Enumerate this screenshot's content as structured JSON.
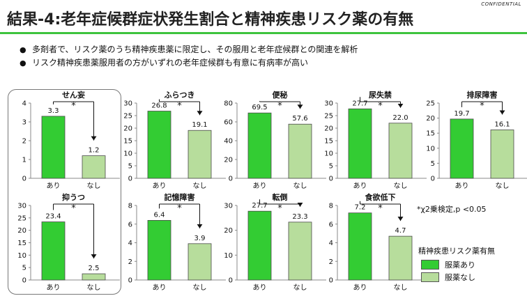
{
  "confidential_label": "CONFIDENTIAL",
  "title": "結果-4:老年症候群症状発生割合と精神疾患リスク薬の有無",
  "bullets": [
    "多剤者で、リスク薬のうち精神疾患薬に限定し、その服用と老年症候群との関連を解析",
    "リスク精神疾患薬服用者の方がいずれの老年症候群も有意に有病率が高い"
  ],
  "bullet_symbol": "●",
  "footnote": "*χ2乗検定,p <0.05",
  "legend": {
    "title": "精神疾患リスク薬有無",
    "items": [
      {
        "label": "服薬あり",
        "color": "#33cc33"
      },
      {
        "label": "服薬なし",
        "color": "#b7dd9c"
      }
    ]
  },
  "colors": {
    "ari": "#33cc33",
    "nashi": "#b7dd9c",
    "bar_border": "#4a4a4a",
    "accent_line": "#3ec43e"
  },
  "chart_data": [
    {
      "type": "bar",
      "title": "せん妄",
      "categories": [
        "あり",
        "なし"
      ],
      "values": [
        3.3,
        1.2
      ],
      "value_labels": [
        "3.3",
        "1.2"
      ],
      "ylim": [
        0,
        4
      ],
      "yticks": [
        "0",
        "1",
        "2",
        "3",
        "4"
      ],
      "significance": "*"
    },
    {
      "type": "bar",
      "title": "ふらつき",
      "categories": [
        "あり",
        "なし"
      ],
      "values": [
        26.8,
        19.1
      ],
      "value_labels": [
        "26.8",
        "19.1"
      ],
      "ylim": [
        0,
        30
      ],
      "yticks": [
        "0",
        "5",
        "10",
        "15",
        "20",
        "25",
        "30"
      ],
      "significance": "*"
    },
    {
      "type": "bar",
      "title": "便秘",
      "categories": [
        "あり",
        "なし"
      ],
      "values": [
        69.5,
        57.6
      ],
      "value_labels": [
        "69.5",
        "57.6"
      ],
      "ylim": [
        0,
        80
      ],
      "yticks": [
        "0",
        "20",
        "40",
        "60",
        "80"
      ],
      "significance": "*"
    },
    {
      "type": "bar",
      "title": "尿失禁",
      "categories": [
        "あり",
        "なし"
      ],
      "values": [
        27.7,
        22.0
      ],
      "value_labels": [
        "27.7",
        "22.0"
      ],
      "ylim": [
        0,
        30
      ],
      "yticks": [
        "0",
        "5",
        "10",
        "15",
        "20",
        "25",
        "30"
      ],
      "significance": "*"
    },
    {
      "type": "bar",
      "title": "排尿障害",
      "categories": [
        "あり",
        "なし"
      ],
      "values": [
        19.7,
        16.1
      ],
      "value_labels": [
        "19.7",
        "16.1"
      ],
      "ylim": [
        0,
        25
      ],
      "yticks": [
        "0",
        "5",
        "10",
        "15",
        "20",
        "25"
      ],
      "significance": "*"
    },
    {
      "type": "bar",
      "title": "抑うつ",
      "categories": [
        "あり",
        "なし"
      ],
      "values": [
        23.4,
        2.5
      ],
      "value_labels": [
        "23.4",
        "2.5"
      ],
      "ylim": [
        0,
        30
      ],
      "yticks": [
        "0",
        "5",
        "10",
        "15",
        "20",
        "25",
        "30"
      ],
      "significance": "*"
    },
    {
      "type": "bar",
      "title": "記憶障害",
      "categories": [
        "あり",
        "なし"
      ],
      "values": [
        6.4,
        3.9
      ],
      "value_labels": [
        "6.4",
        "3.9"
      ],
      "ylim": [
        0,
        8
      ],
      "yticks": [
        "0",
        "2",
        "4",
        "6",
        "8"
      ],
      "significance": "*"
    },
    {
      "type": "bar",
      "title": "転倒",
      "categories": [
        "あり",
        "なし"
      ],
      "values": [
        27.7,
        23.3
      ],
      "value_labels": [
        "27.7",
        "23.3"
      ],
      "ylim": [
        0,
        30
      ],
      "yticks": [
        "0",
        "10",
        "20",
        "30"
      ],
      "significance": "*"
    },
    {
      "type": "bar",
      "title": "食欲低下",
      "categories": [
        "あり",
        "なし"
      ],
      "values": [
        7.2,
        4.7
      ],
      "value_labels": [
        "7.2",
        "4.7"
      ],
      "ylim": [
        0,
        8
      ],
      "yticks": [
        "0",
        "2",
        "4",
        "6",
        "8"
      ],
      "significance": "*"
    }
  ]
}
